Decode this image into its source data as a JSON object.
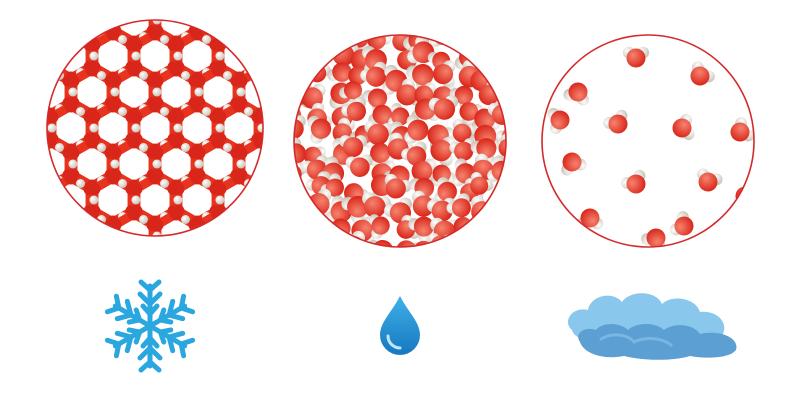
{
  "figure": {
    "subject": "water-molecules-states-of-matter",
    "colors": {
      "oxygen": "#e8331e",
      "oxygen_light": "#f6836f",
      "hydrogen": "#ece7de",
      "hydrogen_shade": "#b9b2a6",
      "circle_outline": "#d42a2a",
      "snowflake": "#2aa7df",
      "drop": "#1c8fd0",
      "cloud_light": "#89c8ec",
      "cloud_dark": "#5b9fd3"
    },
    "panels": [
      {
        "state": "solid",
        "arrangement": "hexagonal-lattice",
        "icon": "snowflake-icon"
      },
      {
        "state": "liquid",
        "arrangement": "dense-random",
        "icon": "water-drop-icon"
      },
      {
        "state": "gas",
        "arrangement": "sparse-random",
        "icon": "cloud-icon",
        "molecule_count": 15
      }
    ]
  }
}
